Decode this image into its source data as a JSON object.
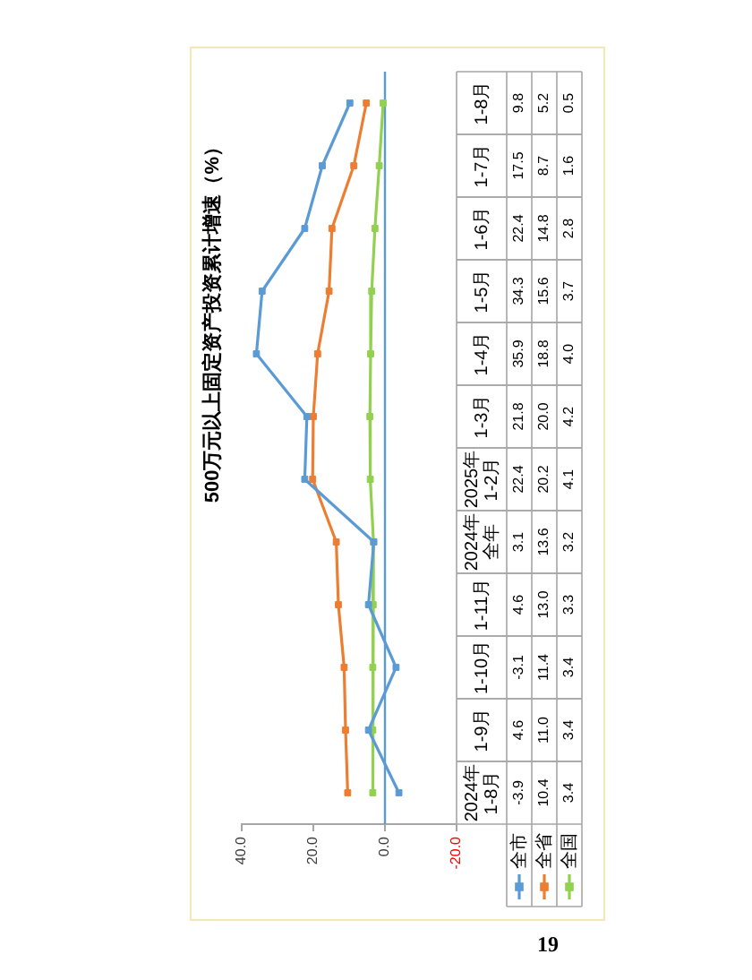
{
  "chart_data": {
    "type": "line",
    "title": "500万元以上固定资产投资累计增速（%）",
    "orientation": "horizontal",
    "categories": [
      "1-8月",
      "1-7月",
      "1-6月",
      "1-5月",
      "1-4月",
      "1-3月",
      "2025年1-2月",
      "2024年全年",
      "1-11月",
      "1-10月",
      "1-9月",
      "2024年1-8月"
    ],
    "series": [
      {
        "name": "全市",
        "color": "#5b9bd5",
        "values": [
          9.8,
          17.5,
          22.4,
          34.3,
          35.9,
          21.8,
          22.4,
          3.1,
          4.6,
          -3.1,
          4.6,
          -3.9
        ],
        "value_labels": [
          "9.8",
          "17.5",
          "22.4",
          "34.3",
          "35.9",
          "21.8",
          "22.4",
          "3.1",
          "4.6",
          "-3.1",
          "4.6",
          "-3.9"
        ]
      },
      {
        "name": "全省",
        "color": "#ed7d31",
        "values": [
          5.2,
          8.7,
          14.8,
          15.6,
          18.8,
          20.0,
          20.2,
          13.6,
          13.0,
          11.4,
          11.0,
          10.4
        ],
        "value_labels": [
          "5.2",
          "8.7",
          "14.8",
          "15.6",
          "18.8",
          "20.0",
          "20.2",
          "13.6",
          "13.0",
          "11.4",
          "11.0",
          "10.4"
        ]
      },
      {
        "name": "全国",
        "color": "#92d050",
        "values": [
          0.5,
          1.6,
          2.8,
          3.7,
          4.0,
          4.2,
          4.1,
          3.2,
          3.3,
          3.4,
          3.4,
          3.4
        ],
        "value_labels": [
          "0.5",
          "1.6",
          "2.8",
          "3.7",
          "4.0",
          "4.2",
          "4.1",
          "3.2",
          "3.3",
          "3.4",
          "3.4",
          "3.4"
        ]
      }
    ],
    "xlim": [
      40,
      -20
    ],
    "xticks": [
      {
        "value": 40,
        "label": "40.0"
      },
      {
        "value": 20,
        "label": "20.0"
      },
      {
        "value": 0,
        "label": "0.0"
      },
      {
        "value": -20,
        "label": "-20.0"
      }
    ],
    "ref_lines": [
      {
        "axis": "x",
        "value": 0,
        "color": "#5b9bd5"
      }
    ],
    "legend": "bottom right",
    "marker": "square",
    "annotations": [
      "19"
    ]
  }
}
